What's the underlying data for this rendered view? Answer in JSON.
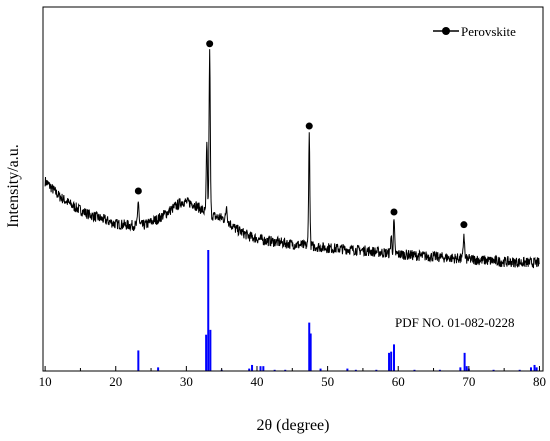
{
  "chart_data": {
    "type": "line",
    "xlabel": "2θ (degree)",
    "ylabel": "Intensity/a.u.",
    "xlim": [
      9.7,
      80.5
    ],
    "xticks": [
      10,
      20,
      30,
      40,
      50,
      60,
      70,
      80
    ],
    "y_axis_tick_labels": false,
    "legend": {
      "label": "Perovskite",
      "position": "top-right",
      "marker": "filled-circle",
      "line": true
    },
    "reference_label": "PDF NO. 01-082-0228",
    "colors": {
      "pattern": "#000000",
      "reference": "#0000ff",
      "marker": "#000000"
    },
    "measured_pattern": {
      "description_values": "approximate relative intensity (0-100) vs 2-theta",
      "background": [
        [
          10,
          44
        ],
        [
          12,
          38
        ],
        [
          14,
          34
        ],
        [
          16,
          31
        ],
        [
          18,
          29
        ],
        [
          20,
          27
        ],
        [
          22,
          26.5
        ],
        [
          24,
          26.5
        ],
        [
          26,
          29
        ],
        [
          28,
          33
        ],
        [
          29.5,
          36
        ],
        [
          31,
          35
        ],
        [
          32.5,
          32
        ],
        [
          34,
          30
        ],
        [
          35.5,
          29
        ],
        [
          37,
          25
        ],
        [
          39,
          22
        ],
        [
          41,
          20.5
        ],
        [
          45,
          19
        ],
        [
          50,
          17.5
        ],
        [
          55,
          16.5
        ],
        [
          60,
          15
        ],
        [
          65,
          14
        ],
        [
          70,
          13
        ],
        [
          75,
          12
        ],
        [
          80,
          11.5
        ]
      ],
      "peaks": [
        {
          "x": 23.2,
          "height": 10,
          "marked": true
        },
        {
          "x": 32.9,
          "height": 27,
          "marked": false
        },
        {
          "x": 33.3,
          "height": 64,
          "marked": true
        },
        {
          "x": 35.7,
          "height": 6,
          "marked": false
        },
        {
          "x": 47.4,
          "height": 44,
          "marked": true
        },
        {
          "x": 59.0,
          "height": 7,
          "marked": false
        },
        {
          "x": 59.4,
          "height": 13,
          "marked": true
        },
        {
          "x": 69.3,
          "height": 10,
          "marked": true
        }
      ]
    },
    "reference_pattern": {
      "description_values": "relative intensity (0-100) of reference stick lines",
      "lines": [
        [
          23.2,
          17
        ],
        [
          26.0,
          3
        ],
        [
          32.8,
          30
        ],
        [
          33.1,
          100
        ],
        [
          33.4,
          34
        ],
        [
          35.0,
          1
        ],
        [
          38.9,
          2
        ],
        [
          39.3,
          5
        ],
        [
          40.5,
          4
        ],
        [
          40.9,
          4
        ],
        [
          42.5,
          1
        ],
        [
          44.0,
          1
        ],
        [
          47.4,
          40
        ],
        [
          47.6,
          31
        ],
        [
          49.0,
          2
        ],
        [
          52.8,
          2
        ],
        [
          54.0,
          1
        ],
        [
          56.9,
          1
        ],
        [
          58.7,
          15
        ],
        [
          59.0,
          16
        ],
        [
          59.4,
          22
        ],
        [
          62.3,
          1
        ],
        [
          65.9,
          1
        ],
        [
          68.8,
          3
        ],
        [
          69.4,
          15
        ],
        [
          69.7,
          4
        ],
        [
          70.0,
          2
        ],
        [
          73.5,
          1
        ],
        [
          77.2,
          1
        ],
        [
          78.8,
          3
        ],
        [
          79.3,
          5
        ],
        [
          79.6,
          3
        ]
      ]
    }
  }
}
